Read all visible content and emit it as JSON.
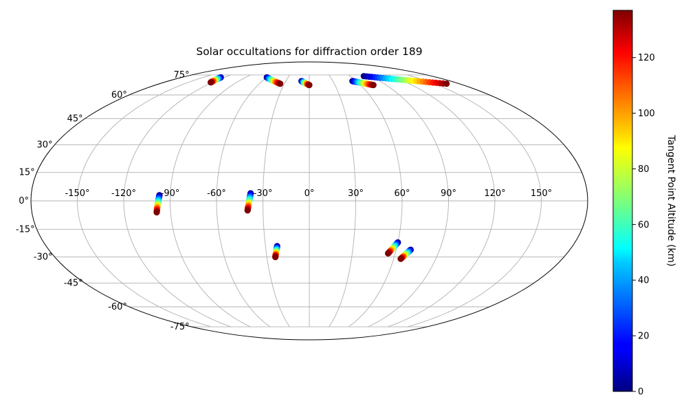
{
  "chart_data": {
    "type": "scatter",
    "projection": "mollweide",
    "title": "Solar occultations for diffraction order 189",
    "longitude_tick_labels": [
      "-150°",
      "-120°",
      "-90°",
      "-60°",
      "-30°",
      "0°",
      "30°",
      "60°",
      "90°",
      "120°",
      "150°"
    ],
    "latitude_tick_labels": [
      "-75°",
      "-60°",
      "-45°",
      "-30°",
      "-15°",
      "0°",
      "15°",
      "30°",
      "45°",
      "60°",
      "75°"
    ],
    "grid": true,
    "colorbar": {
      "label": "Tangent Point Altitude (km)",
      "colormap": "jet",
      "range": [
        0,
        137
      ],
      "tick_labels": [
        "0",
        "20",
        "40",
        "60",
        "80",
        "100",
        "120"
      ],
      "placement": "right"
    },
    "series": [
      {
        "lon_start": -97,
        "lat_start": 3,
        "lon_end": -99,
        "lat_end": -6
      },
      {
        "lon_start": -38,
        "lat_start": 4,
        "lon_end": -40,
        "lat_end": -5
      },
      {
        "lon_start": -22,
        "lat_start": -24,
        "lon_end": -24,
        "lat_end": -30
      },
      {
        "lon_start": 60,
        "lat_start": -22,
        "lon_end": 55,
        "lat_end": -28
      },
      {
        "lon_start": 70,
        "lat_start": -26,
        "lon_end": 65,
        "lat_end": -31
      },
      {
        "lon_start": -125,
        "lat_start": 73,
        "lon_end": -122,
        "lat_end": 69
      },
      {
        "lon_start": -60,
        "lat_start": 73,
        "lon_end": -35,
        "lat_end": 68
      },
      {
        "lon_start": -10,
        "lat_start": 70,
        "lon_end": 0,
        "lat_end": 67
      },
      {
        "lon_start": 55,
        "lat_start": 70,
        "lon_end": 75,
        "lat_end": 67
      },
      {
        "lon_start": 80,
        "lat_start": 74,
        "lon_end": 165,
        "lat_end": 68
      }
    ]
  }
}
